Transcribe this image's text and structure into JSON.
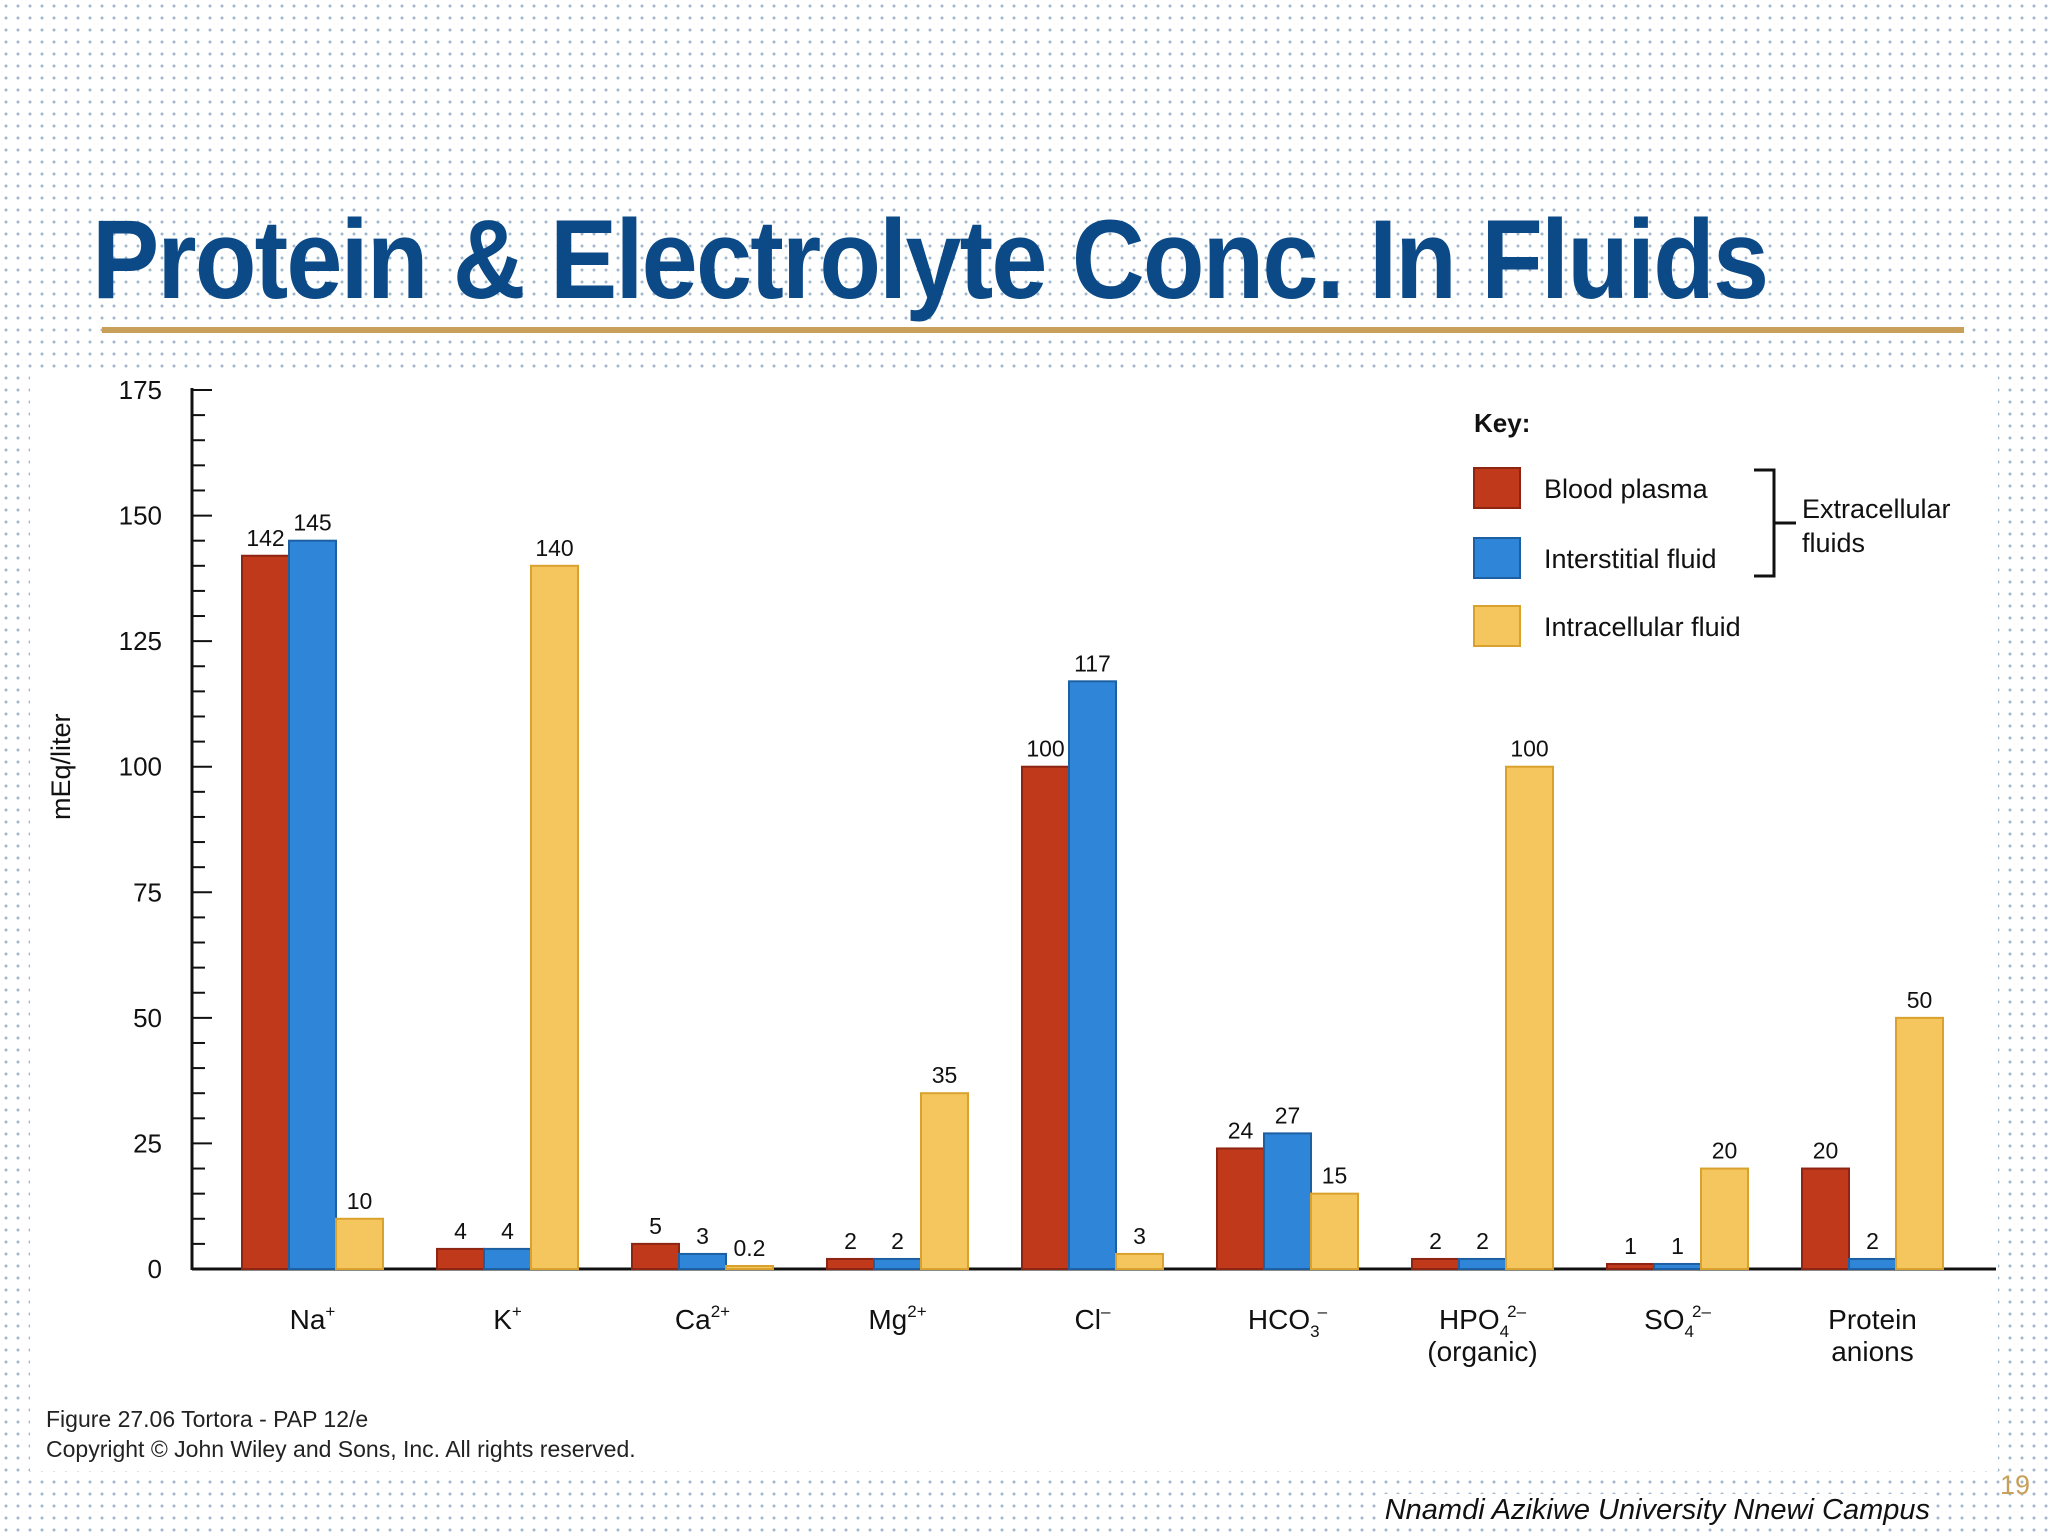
{
  "slide": {
    "title": "Protein & Electrolyte Conc. In Fluids",
    "figure_credit_line1": "Figure 27.06  Tortora - PAP 12/e",
    "figure_credit_line2": "Copyright © John Wiley and Sons, Inc. All rights reserved.",
    "footer": "Nnamdi Azikiwe University Nnewi Campus",
    "page_number": "19"
  },
  "colors": {
    "title": "#0b4a86",
    "rule": "#c8a05a",
    "plasma": "#c0391b",
    "interstitial": "#2f86d8",
    "intracellular": "#f6c65e"
  },
  "chart_data": {
    "type": "bar",
    "title": "",
    "xlabel": "",
    "ylabel": "mEq/liter",
    "ylim": [
      0,
      175
    ],
    "yticks": [
      0,
      25,
      50,
      75,
      100,
      125,
      150,
      175
    ],
    "grid": false,
    "legend_title": "Key:",
    "legend_position": "top-right",
    "legend_group_label_line1": "Extracellular",
    "legend_group_label_line2": "fluids",
    "categories": [
      {
        "label": "Na",
        "sup": "+",
        "sub": "",
        "line2": ""
      },
      {
        "label": "K",
        "sup": "+",
        "sub": "",
        "line2": ""
      },
      {
        "label": "Ca",
        "sup": "2+",
        "sub": "",
        "line2": ""
      },
      {
        "label": "Mg",
        "sup": "2+",
        "sub": "",
        "line2": ""
      },
      {
        "label": "Cl",
        "sup": "–",
        "sub": "",
        "line2": ""
      },
      {
        "label": "HCO",
        "sup": "–",
        "sub": "3",
        "line2": ""
      },
      {
        "label": "HPO",
        "sup": "2–",
        "sub": "4",
        "line2": "(organic)"
      },
      {
        "label": "SO",
        "sup": "2–",
        "sub": "4",
        "line2": ""
      },
      {
        "label": "Protein",
        "sup": "",
        "sub": "",
        "line2": "anions"
      }
    ],
    "series": [
      {
        "name": "Blood plasma",
        "color": "#c0391b",
        "border": "#8e2412",
        "values": [
          142,
          4,
          5,
          2,
          100,
          24,
          2,
          1,
          20
        ],
        "labels": [
          "142",
          "4",
          "5",
          "2",
          "100",
          "24",
          "2",
          "1",
          "20"
        ]
      },
      {
        "name": "Interstitial fluid",
        "color": "#2f86d8",
        "border": "#1d5fa3",
        "values": [
          145,
          4,
          3,
          2,
          117,
          27,
          2,
          1,
          2
        ],
        "labels": [
          "145",
          "4",
          "3",
          "2",
          "117",
          "27",
          "2",
          "1",
          "2"
        ]
      },
      {
        "name": "Intracellular fluid",
        "color": "#f6c65e",
        "border": "#d9a22e",
        "values": [
          10,
          140,
          0.2,
          35,
          3,
          15,
          100,
          20,
          50
        ],
        "labels": [
          "10",
          "140",
          "0.2",
          "35",
          "3",
          "15",
          "100",
          "20",
          "50"
        ]
      }
    ]
  }
}
